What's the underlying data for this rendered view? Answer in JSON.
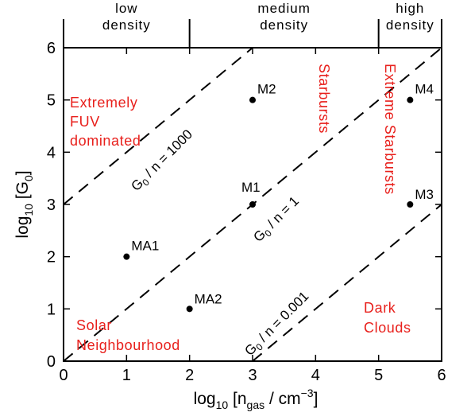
{
  "chart_data": {
    "type": "scatter",
    "xlabel": {
      "pre": "log",
      "pre_sub": "10",
      "mid": " [n",
      "mid_sub": "gas",
      "post": " / cm",
      "post_sup": "−3",
      "end": "]"
    },
    "ylabel": {
      "pre": "log",
      "pre_sub": "10",
      "mid": " [G",
      "mid_sub": "0",
      "end": "]"
    },
    "xlim": [
      0,
      6
    ],
    "ylim": [
      0,
      6
    ],
    "xticks": [
      0,
      1,
      2,
      3,
      4,
      5,
      6
    ],
    "yticks": [
      0,
      1,
      2,
      3,
      4,
      5,
      6
    ],
    "points": [
      {
        "label": "M1",
        "x": 3,
        "y": 3
      },
      {
        "label": "M2",
        "x": 3,
        "y": 5
      },
      {
        "label": "M3",
        "x": 5.5,
        "y": 3
      },
      {
        "label": "M4",
        "x": 5.5,
        "y": 5
      },
      {
        "label": "MA1",
        "x": 1,
        "y": 2
      },
      {
        "label": "MA2",
        "x": 2,
        "y": 1
      }
    ],
    "lines": [
      {
        "ratio_text": "1000",
        "intercept": 3,
        "style": "dashed"
      },
      {
        "ratio_text": "1",
        "intercept": 0,
        "style": "dashed"
      },
      {
        "ratio_text": "0.001",
        "intercept": -3,
        "style": "dashed"
      }
    ],
    "density_bands": [
      {
        "lines": [
          "low",
          "density"
        ],
        "from": 0,
        "to": 2
      },
      {
        "lines": [
          "medium",
          "density"
        ],
        "from": 2,
        "to": 5
      },
      {
        "lines": [
          "high",
          "density"
        ],
        "from": 5,
        "to": 6
      }
    ],
    "regions": [
      {
        "lines": [
          "Extremely",
          "FUV",
          "dominated"
        ]
      },
      {
        "lines": [
          "Starbursts"
        ]
      },
      {
        "lines": [
          "Extreme Starbursts"
        ]
      },
      {
        "lines": [
          "Solar",
          "Neighbourhood"
        ]
      },
      {
        "lines": [
          "Dark",
          "Clouds"
        ]
      }
    ],
    "diag_label": {
      "g": "G",
      "sub": "0",
      "mid": " / n = "
    },
    "colors": {
      "regions": "#e8201c",
      "lines": "#000000"
    }
  }
}
